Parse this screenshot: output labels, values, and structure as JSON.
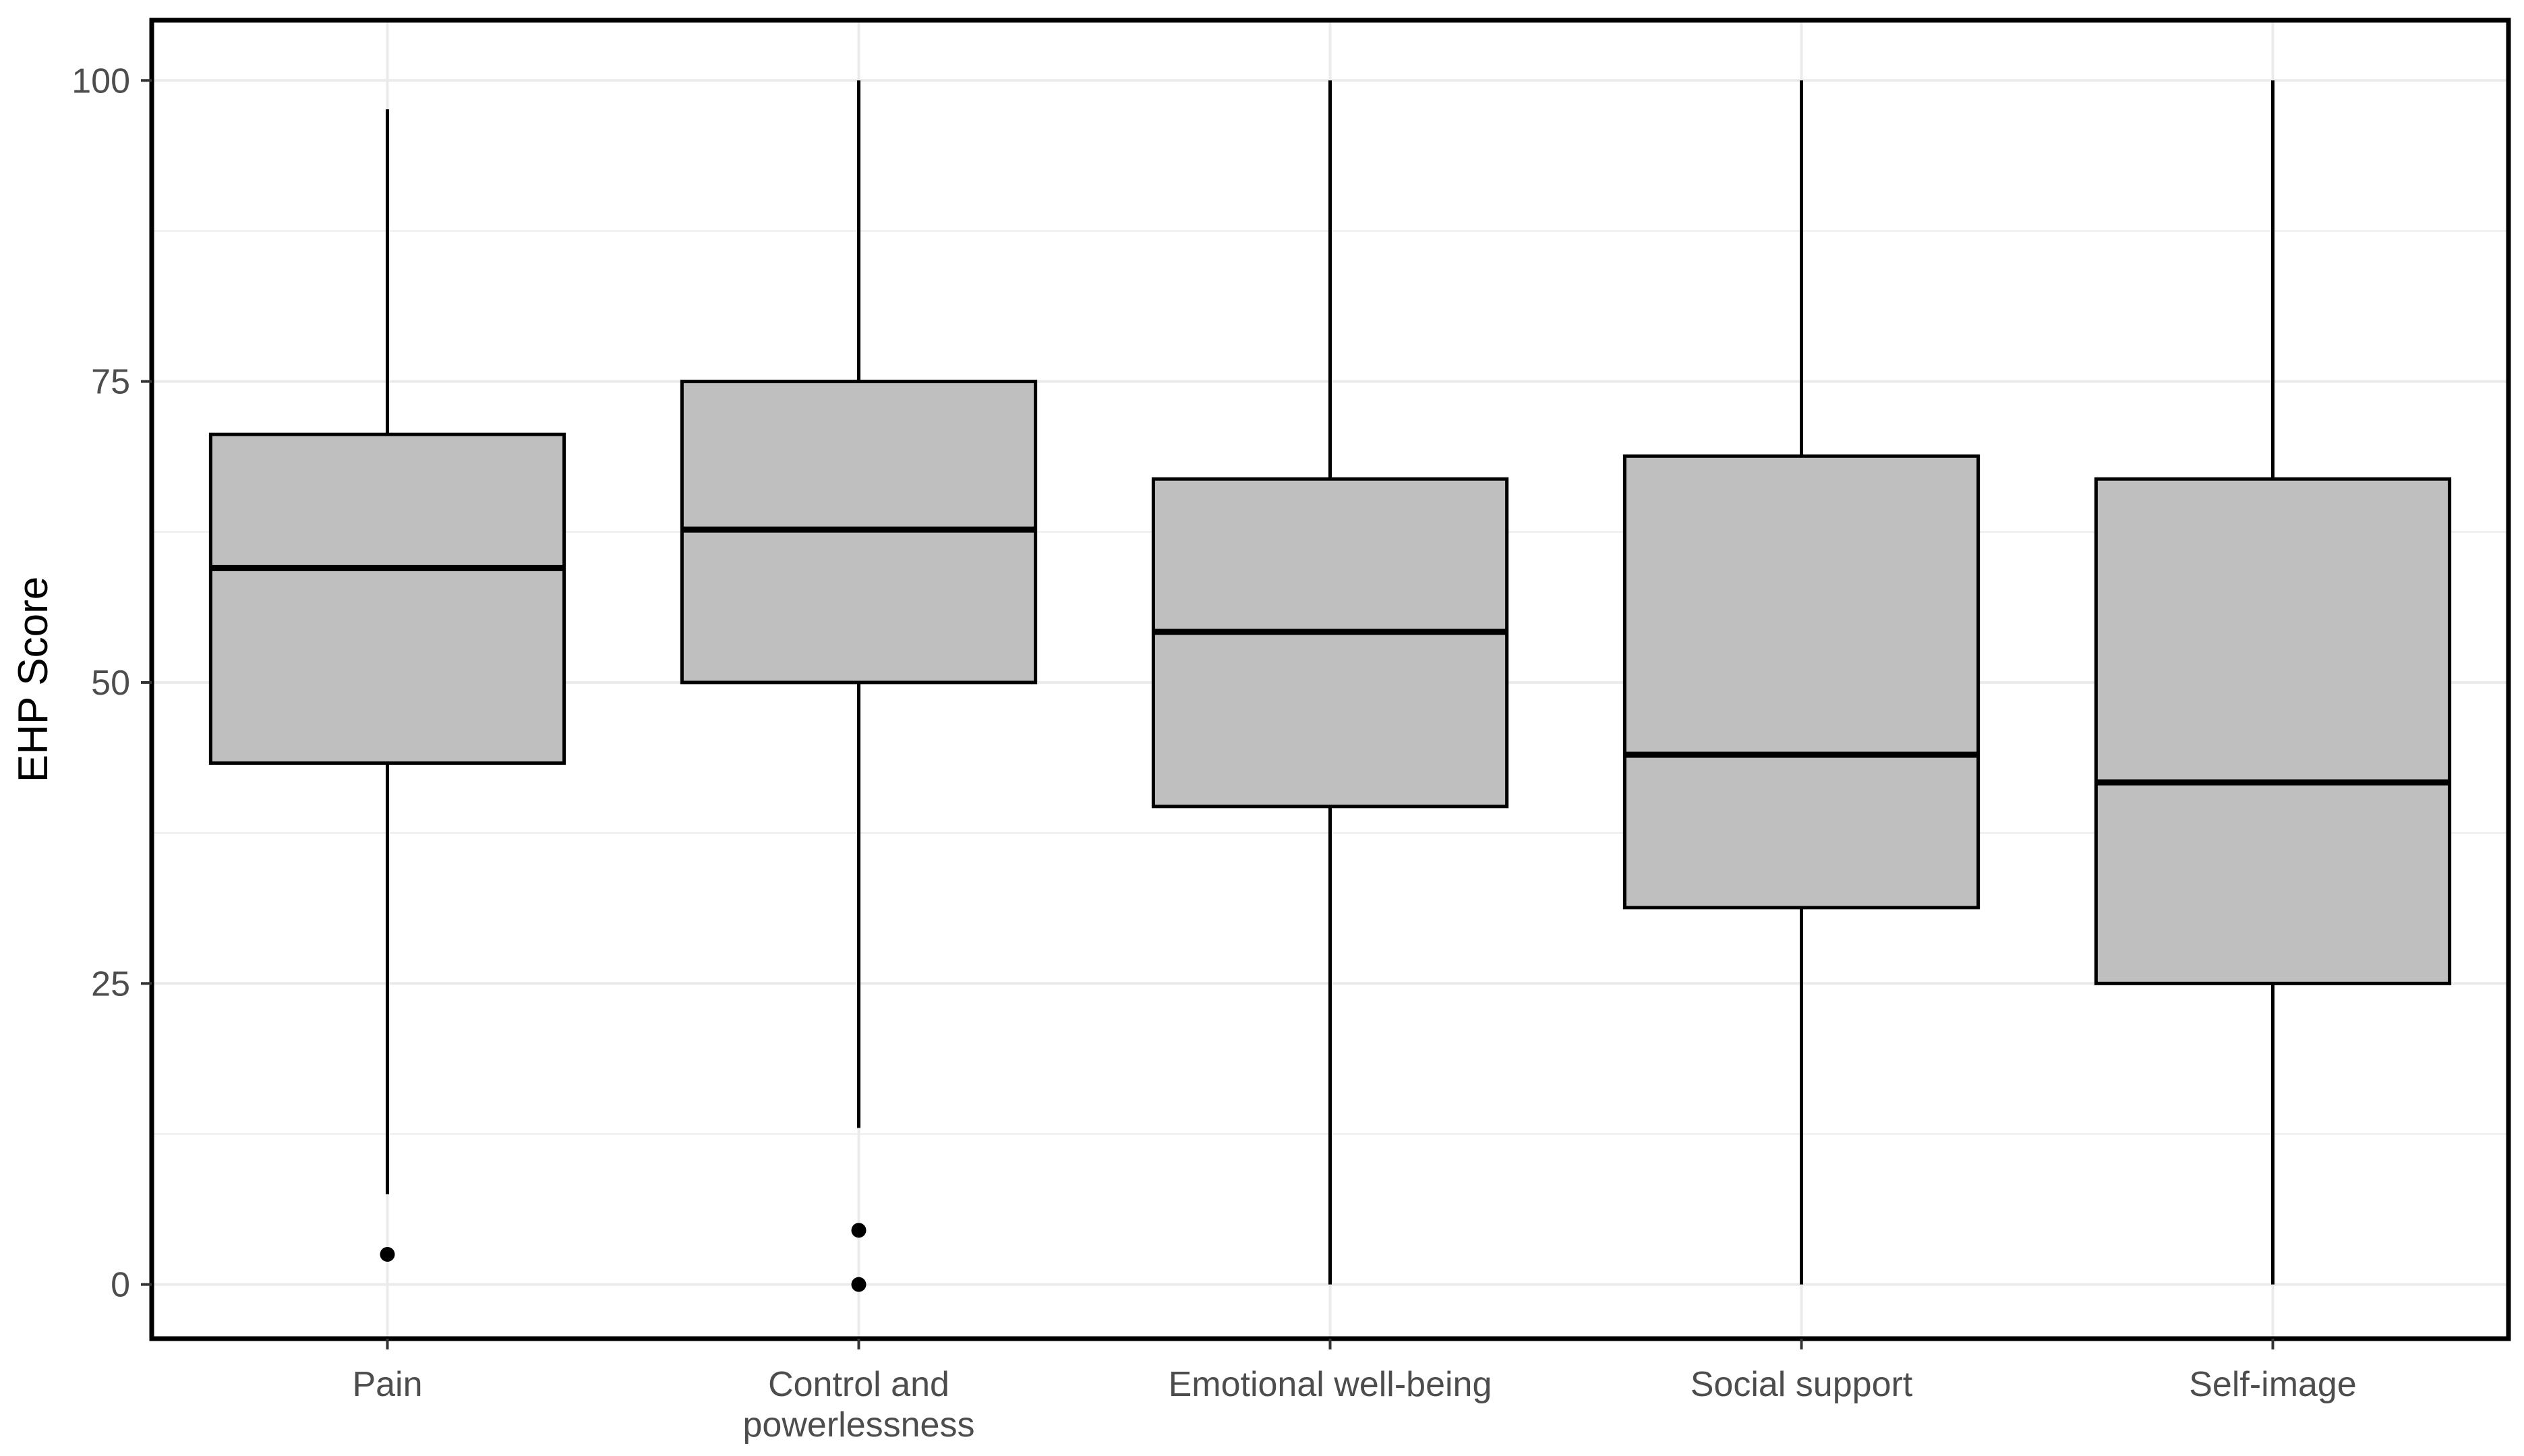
{
  "chart_data": {
    "type": "boxplot",
    "title": "",
    "xlabel": "",
    "ylabel": "EHP Score",
    "ylim": [
      -4.5,
      105
    ],
    "yticks": [
      0,
      25,
      50,
      75,
      100
    ],
    "grid": true,
    "categories": [
      {
        "label_lines": [
          "Pain"
        ]
      },
      {
        "label_lines": [
          "Control and",
          "powerlessness"
        ]
      },
      {
        "label_lines": [
          "Emotional well-being"
        ]
      },
      {
        "label_lines": [
          "Social support"
        ]
      },
      {
        "label_lines": [
          "Self-image"
        ]
      }
    ],
    "boxes": [
      {
        "whisker_low": 7.5,
        "q1": 43.3,
        "median": 59.5,
        "q3": 70.6,
        "whisker_high": 97.6,
        "outliers": [
          2.5
        ]
      },
      {
        "whisker_low": 13.0,
        "q1": 50.0,
        "median": 62.7,
        "q3": 75.0,
        "whisker_high": 100,
        "outliers": [
          4.5,
          0
        ]
      },
      {
        "whisker_low": 0,
        "q1": 39.7,
        "median": 54.2,
        "q3": 66.9,
        "whisker_high": 100,
        "outliers": []
      },
      {
        "whisker_low": 0,
        "q1": 31.3,
        "median": 44.0,
        "q3": 68.8,
        "whisker_high": 100,
        "outliers": []
      },
      {
        "whisker_low": 0,
        "q1": 25.0,
        "median": 41.7,
        "q3": 66.9,
        "whisker_high": 100,
        "outliers": []
      }
    ],
    "colors": {
      "box_fill": "#bfbfbf",
      "line": "#000000",
      "grid": "#ebebeb",
      "tick_text": "#4d4d4d"
    }
  }
}
